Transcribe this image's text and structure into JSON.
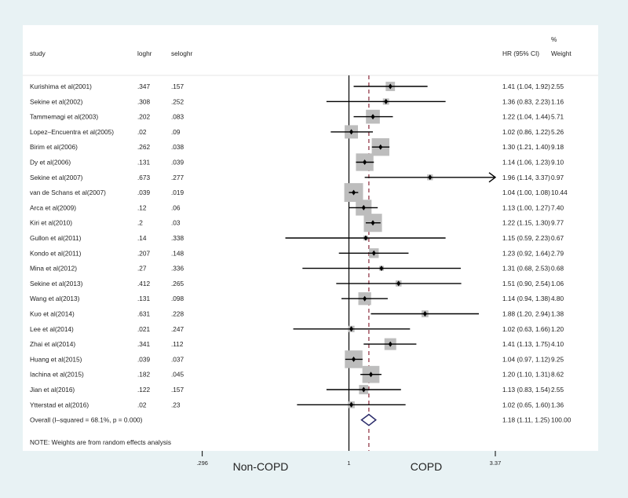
{
  "chart_data": {
    "type": "forest",
    "columns": {
      "study": "study",
      "loghr": "loghr",
      "seloghr": "seloghr",
      "hr": "HR (95% CI)",
      "weight_pct": "%",
      "weight": "Weight"
    },
    "studies": [
      {
        "study": "Kurishima et al(2001)",
        "loghr": ".347",
        "seloghr": ".157",
        "hr": 1.41,
        "lo": 1.04,
        "hi": 1.92,
        "hr_text": "1.41 (1.04, 1.92)",
        "weight": "2.55"
      },
      {
        "study": "Sekine et al(2002)",
        "loghr": ".308",
        "seloghr": ".252",
        "hr": 1.36,
        "lo": 0.83,
        "hi": 2.23,
        "hr_text": "1.36 (0.83, 2.23)",
        "weight": "1.16"
      },
      {
        "study": "Tammemagi et al(2003)",
        "loghr": ".202",
        "seloghr": ".083",
        "hr": 1.22,
        "lo": 1.04,
        "hi": 1.44,
        "hr_text": "1.22 (1.04, 1.44)",
        "weight": "5.71"
      },
      {
        "study": "Lopez–Encuentra et al(2005)",
        "loghr": ".02",
        "seloghr": ".09",
        "hr": 1.02,
        "lo": 0.86,
        "hi": 1.22,
        "hr_text": "1.02 (0.86, 1.22)",
        "weight": "5.26"
      },
      {
        "study": "Birim et al(2006)",
        "loghr": ".262",
        "seloghr": ".038",
        "hr": 1.3,
        "lo": 1.21,
        "hi": 1.4,
        "hr_text": "1.30 (1.21, 1.40)",
        "weight": "9.18"
      },
      {
        "study": "Dy et al(2006)",
        "loghr": ".131",
        "seloghr": ".039",
        "hr": 1.14,
        "lo": 1.06,
        "hi": 1.23,
        "hr_text": "1.14 (1.06, 1.23)",
        "weight": "9.10"
      },
      {
        "study": "Sekine et al(2007)",
        "loghr": ".673",
        "seloghr": ".277",
        "hr": 1.96,
        "lo": 1.14,
        "hi": 3.37,
        "hr_text": "1.96 (1.14, 3.37)",
        "weight": "0.97"
      },
      {
        "study": "van de Schans et al(2007)",
        "loghr": ".039",
        "seloghr": ".019",
        "hr": 1.04,
        "lo": 1.0,
        "hi": 1.08,
        "hr_text": "1.04 (1.00, 1.08)",
        "weight": "10.44"
      },
      {
        "study": "Arca et al(2009)",
        "loghr": ".12",
        "seloghr": ".06",
        "hr": 1.13,
        "lo": 1.0,
        "hi": 1.27,
        "hr_text": "1.13 (1.00, 1.27)",
        "weight": "7.40"
      },
      {
        "study": "Kiri et al(2010)",
        "loghr": ".2",
        "seloghr": ".03",
        "hr": 1.22,
        "lo": 1.15,
        "hi": 1.3,
        "hr_text": "1.22 (1.15, 1.30)",
        "weight": "9.77"
      },
      {
        "study": "Gullon et al(2011)",
        "loghr": ".14",
        "seloghr": ".338",
        "hr": 1.15,
        "lo": 0.59,
        "hi": 2.23,
        "hr_text": "1.15 (0.59, 2.23)",
        "weight": "0.67"
      },
      {
        "study": "Kondo et al(2011)",
        "loghr": ".207",
        "seloghr": ".148",
        "hr": 1.23,
        "lo": 0.92,
        "hi": 1.64,
        "hr_text": "1.23 (0.92, 1.64)",
        "weight": "2.79"
      },
      {
        "study": "Mina et al(2012)",
        "loghr": ".27",
        "seloghr": ".336",
        "hr": 1.31,
        "lo": 0.68,
        "hi": 2.53,
        "hr_text": "1.31 (0.68, 2.53)",
        "weight": "0.68"
      },
      {
        "study": "Sekine et al(2013)",
        "loghr": ".412",
        "seloghr": ".265",
        "hr": 1.51,
        "lo": 0.9,
        "hi": 2.54,
        "hr_text": "1.51 (0.90, 2.54)",
        "weight": "1.06"
      },
      {
        "study": "Wang et al(2013)",
        "loghr": ".131",
        "seloghr": ".098",
        "hr": 1.14,
        "lo": 0.94,
        "hi": 1.38,
        "hr_text": "1.14 (0.94, 1.38)",
        "weight": "4.80"
      },
      {
        "study": "Kuo et al(2014)",
        "loghr": ".631",
        "seloghr": ".228",
        "hr": 1.88,
        "lo": 1.2,
        "hi": 2.94,
        "hr_text": "1.88 (1.20, 2.94)",
        "weight": "1.38"
      },
      {
        "study": "Lee et al(2014)",
        "loghr": ".021",
        "seloghr": ".247",
        "hr": 1.02,
        "lo": 0.63,
        "hi": 1.66,
        "hr_text": "1.02 (0.63, 1.66)",
        "weight": "1.20"
      },
      {
        "study": "Zhai et al(2014)",
        "loghr": ".341",
        "seloghr": ".112",
        "hr": 1.41,
        "lo": 1.13,
        "hi": 1.75,
        "hr_text": "1.41 (1.13, 1.75)",
        "weight": "4.10"
      },
      {
        "study": "Huang et al(2015)",
        "loghr": ".039",
        "seloghr": ".037",
        "hr": 1.04,
        "lo": 0.97,
        "hi": 1.12,
        "hr_text": "1.04 (0.97, 1.12)",
        "weight": "9.25"
      },
      {
        "study": "Iachina et al(2015)",
        "loghr": ".182",
        "seloghr": ".045",
        "hr": 1.2,
        "lo": 1.1,
        "hi": 1.31,
        "hr_text": "1.20 (1.10, 1.31)",
        "weight": "8.62"
      },
      {
        "study": "Jian et al(2016)",
        "loghr": ".122",
        "seloghr": ".157",
        "hr": 1.13,
        "lo": 0.83,
        "hi": 1.54,
        "hr_text": "1.13 (0.83, 1.54)",
        "weight": "2.55"
      },
      {
        "study": "Ytterstad et al(2016)",
        "loghr": ".02",
        "seloghr": ".23",
        "hr": 1.02,
        "lo": 0.65,
        "hi": 1.6,
        "hr_text": "1.02 (0.65, 1.60)",
        "weight": "1.36"
      }
    ],
    "overall": {
      "label": "Overall  (I–squared = 68.1%, p = 0.000)",
      "hr": 1.18,
      "lo": 1.11,
      "hi": 1.25,
      "hr_text": "1.18 (1.11, 1.25)",
      "weight": "100.00"
    },
    "note": "NOTE: Weights are from random effects analysis",
    "xaxis": {
      "scale": "log",
      "range": [
        0.296,
        3.37
      ],
      "ticks": [
        ".296",
        "1",
        "3.37"
      ],
      "tick_values": [
        0.296,
        1,
        3.37
      ],
      "null_line": 1
    },
    "xlabel_left": "Non-COPD",
    "xlabel_right": "COPD",
    "colors": {
      "box": "#bdbdbd",
      "line": "#000000",
      "overall_line": "#8b2a3a",
      "diamond": "#2b2c6b",
      "background": "#e8f2f4"
    }
  }
}
